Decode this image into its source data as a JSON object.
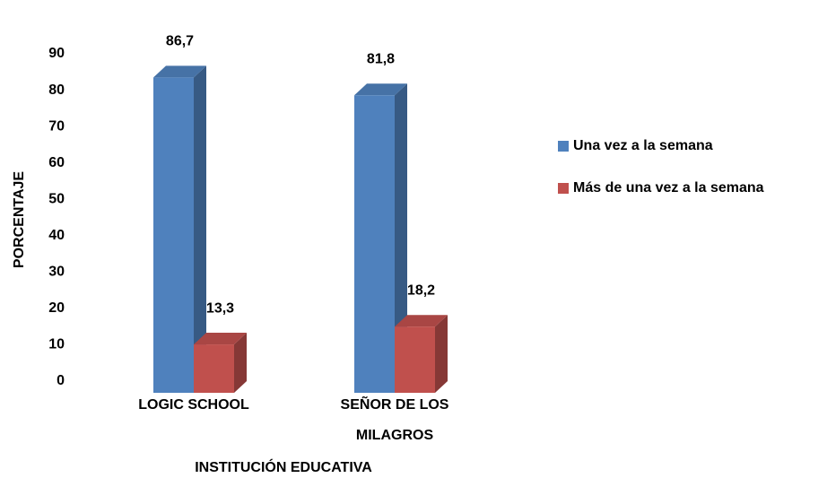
{
  "chart_data": {
    "type": "bar3d",
    "x_label": "INSTITUCIÓN EDUCATIVA",
    "y_label": "PORCENTAJE",
    "categories": [
      "LOGIC SCHOOL",
      "SEÑOR DE LOS MILAGROS"
    ],
    "series": [
      {
        "name": "Una vez a la semana",
        "color": "#4f81bd",
        "values": [
          86.7,
          81.8
        ],
        "value_labels": [
          "86,7",
          "81,8"
        ]
      },
      {
        "name": "Más de una vez a la semana",
        "color": "#c0504d",
        "values": [
          13.3,
          18.2
        ],
        "value_labels": [
          "13,3",
          "18,2"
        ]
      }
    ],
    "ylim": [
      0,
      90
    ],
    "yticks": [
      0,
      10,
      20,
      30,
      40,
      50,
      60,
      70,
      80,
      90
    ],
    "grid": false,
    "legend": "right"
  }
}
